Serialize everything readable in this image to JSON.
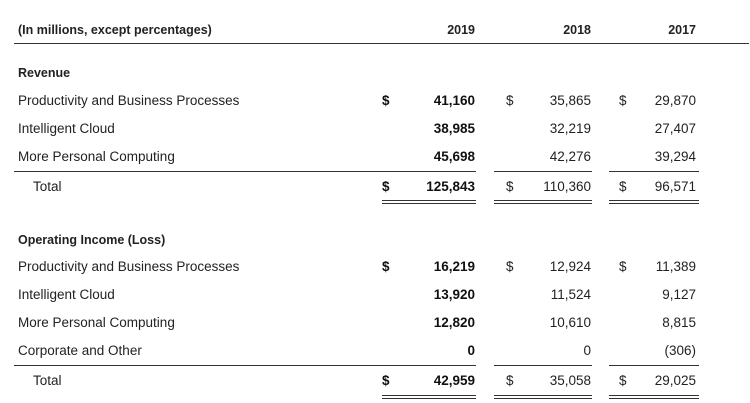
{
  "header": {
    "label": "(In millions, except percentages)",
    "years": [
      "2019",
      "2018",
      "2017"
    ]
  },
  "revenue": {
    "title": "Revenue",
    "rows": [
      {
        "label": "Productivity and Business Processes",
        "y2019": "41,160",
        "y2018": "35,865",
        "y2017": "29,870",
        "dollar": "$"
      },
      {
        "label": "Intelligent Cloud",
        "y2019": "38,985",
        "y2018": "32,219",
        "y2017": "27,407"
      },
      {
        "label": "More Personal Computing",
        "y2019": "45,698",
        "y2018": "42,276",
        "y2017": "39,294"
      }
    ],
    "total": {
      "label": "Total",
      "y2019": "125,843",
      "y2018": "110,360",
      "y2017": "96,571",
      "dollar": "$"
    }
  },
  "operating_income": {
    "title": "Operating Income (Loss)",
    "rows": [
      {
        "label": "Productivity and Business Processes",
        "y2019": "16,219",
        "y2018": "12,924",
        "y2017": "11,389",
        "dollar": "$"
      },
      {
        "label": "Intelligent Cloud",
        "y2019": "13,920",
        "y2018": "11,524",
        "y2017": "9,127"
      },
      {
        "label": "More Personal Computing",
        "y2019": "12,820",
        "y2018": "10,610",
        "y2017": "8,815"
      },
      {
        "label": "Corporate and Other",
        "y2019": "0",
        "y2018": "0",
        "y2017": "(306)"
      }
    ],
    "total": {
      "label": "Total",
      "y2019": "42,959",
      "y2018": "35,058",
      "y2017": "29,025",
      "dollar": "$"
    }
  }
}
